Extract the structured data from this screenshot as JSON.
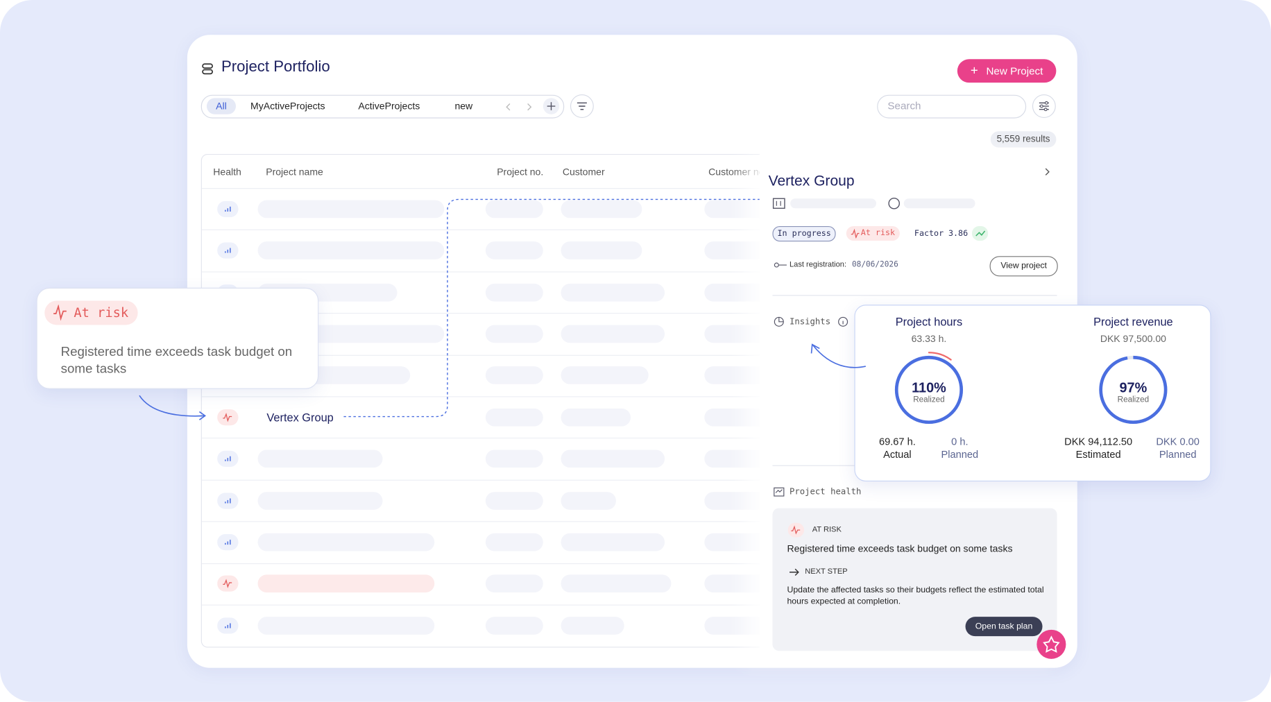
{
  "header": {
    "title": "Project Portfolio",
    "new_button": "New Project"
  },
  "tabs": [
    "All",
    "MyActiveProjects",
    "ActiveProjects",
    "new"
  ],
  "search_placeholder": "Search",
  "results": "5,559 results",
  "table": {
    "columns": [
      "Health",
      "Project name",
      "Project no.",
      "Customer",
      "Customer no"
    ],
    "highlighted_row": "Vertex Group"
  },
  "callout": {
    "badge": "At risk",
    "text": "Registered time exceeds task budget on some tasks"
  },
  "panel": {
    "title": "Vertex Group",
    "status": "In progress",
    "risk": "At risk",
    "factor_label": "Factor",
    "factor_value": "3.86",
    "last_registration_label": "Last registration:",
    "last_registration_date": "08/06/2026",
    "view_button": "View project",
    "insights": "Insights",
    "project_health": "Project health",
    "health_status": "AT RISK",
    "health_text": "Registered time exceeds task budget on some tasks",
    "next_step_label": "NEXT STEP",
    "next_step_text": "Update the affected tasks so their budgets reflect the estimated total hours expected at completion.",
    "task_button": "Open task plan"
  },
  "insights": {
    "hours": {
      "title": "Project hours",
      "total": "63.33 h.",
      "percent": {
        "value": 110,
        "label": "110%"
      },
      "percent_caption": "Realized",
      "actual": "69.67 h.",
      "actual_label": "Actual",
      "planned": "0 h.",
      "planned_label": "Planned"
    },
    "revenue": {
      "title": "Project revenue",
      "total": "DKK 97,500.00",
      "percent": {
        "value": 97,
        "label": "97%"
      },
      "percent_caption": "Realized",
      "estimated": "DKK 94,112.50",
      "estimated_label": "Estimated",
      "planned": "DKK 0.00",
      "planned_label": "Planned"
    }
  }
}
